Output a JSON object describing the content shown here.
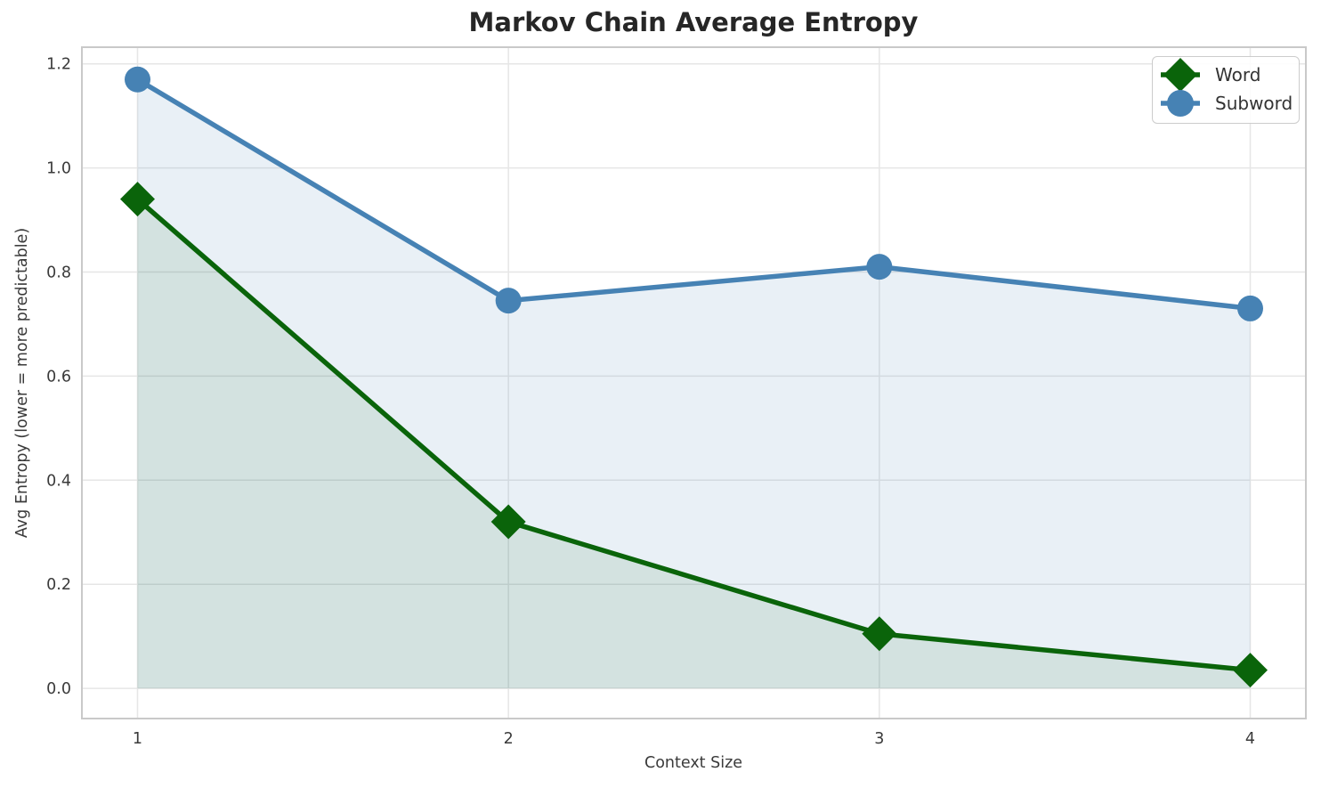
{
  "chart_data": {
    "type": "line",
    "title": "Markov Chain Average Entropy",
    "xlabel": "Context Size",
    "ylabel": "Avg Entropy (lower = more predictable)",
    "x": [
      1,
      2,
      3,
      4
    ],
    "series": [
      {
        "name": "Word",
        "marker": "diamond",
        "color": "#0a640a",
        "fill_alpha": 0.1,
        "values": [
          0.94,
          0.32,
          0.105,
          0.035
        ]
      },
      {
        "name": "Subword",
        "marker": "circle",
        "color": "#4682b4",
        "fill_alpha": 0.12,
        "values": [
          1.17,
          0.745,
          0.81,
          0.73
        ]
      }
    ],
    "fill_to_zero": true,
    "xtick_labels": [
      "1",
      "2",
      "3",
      "4"
    ],
    "ytick_labels": [
      "0.0",
      "0.2",
      "0.4",
      "0.6",
      "0.8",
      "1.0",
      "1.2"
    ],
    "xlim": [
      0.85,
      4.15
    ],
    "ylim": [
      -0.058,
      1.232
    ],
    "grid": true,
    "legend_position": "upper right",
    "colors": {
      "grid": "#e6e6e6",
      "spine": "#c9c9c9",
      "tick_text": "#3a3a3a",
      "title_text": "#262626",
      "legend_border": "#cccccc",
      "legend_text": "#333333",
      "background": "#ffffff"
    }
  }
}
